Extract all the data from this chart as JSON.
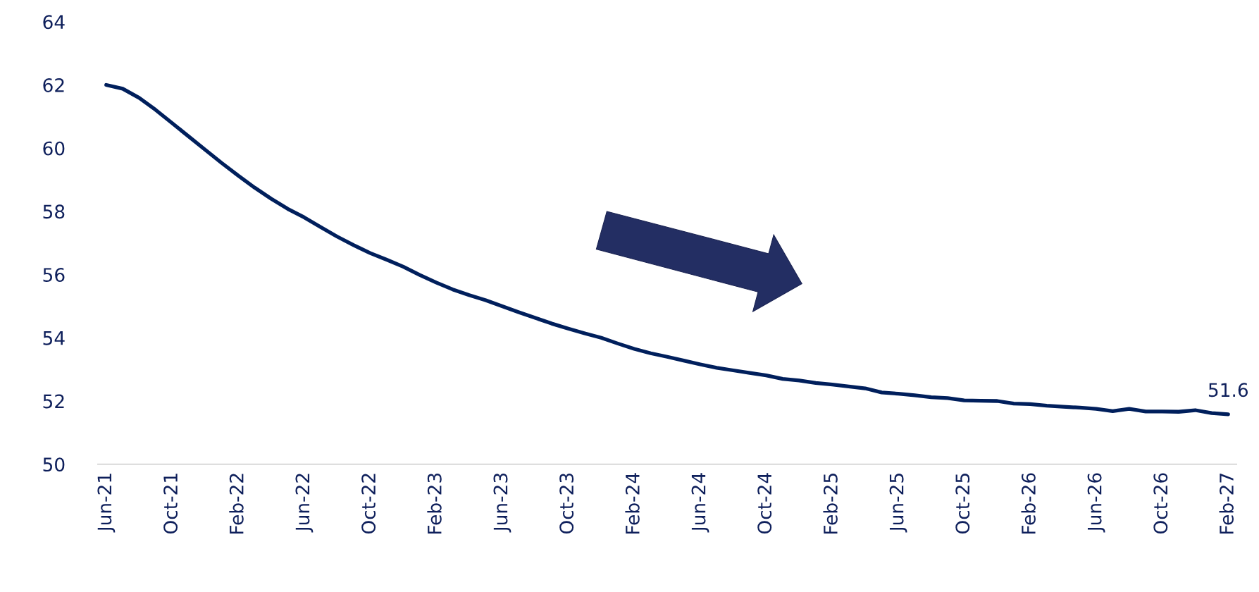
{
  "chart_data": {
    "type": "line",
    "categories": [
      "Jun-21",
      null,
      null,
      null,
      "Oct-21",
      null,
      null,
      null,
      "Feb-22",
      null,
      null,
      null,
      "Jun-22",
      null,
      null,
      null,
      "Oct-22",
      null,
      null,
      null,
      "Feb-23",
      null,
      null,
      null,
      "Jun-23",
      null,
      null,
      null,
      "Oct-23",
      null,
      null,
      null,
      "Feb-24",
      null,
      null,
      null,
      "Jun-24",
      null,
      null,
      null,
      "Oct-24",
      null,
      null,
      null,
      "Feb-25",
      null,
      null,
      null,
      "Jun-25",
      null,
      null,
      null,
      "Oct-25",
      null,
      null,
      null,
      "Feb-26",
      null,
      null,
      null,
      "Jun-26",
      null,
      null,
      null,
      "Oct-26",
      null,
      null,
      null,
      "Feb-27"
    ],
    "series": [
      {
        "color": "#001f5c",
        "values": [
          62.0,
          61.88,
          61.59,
          61.21,
          60.79,
          60.37,
          59.95,
          59.53,
          59.13,
          58.75,
          58.4,
          58.08,
          57.81,
          57.5,
          57.2,
          56.93,
          56.68,
          56.47,
          56.25,
          55.99,
          55.75,
          55.53,
          55.35,
          55.19,
          55.0,
          54.81,
          54.63,
          54.45,
          54.29,
          54.14,
          54.0,
          53.82,
          53.65,
          53.51,
          53.4,
          53.28,
          53.16,
          53.05,
          52.97,
          52.89,
          52.81,
          52.7,
          52.65,
          52.57,
          52.52,
          52.46,
          52.4,
          52.27,
          52.23,
          52.18,
          52.12,
          52.09,
          52.02,
          52.01,
          52.0,
          51.92,
          51.9,
          51.85,
          51.82,
          51.79,
          51.75,
          51.68,
          51.75,
          51.67,
          51.67,
          51.66,
          51.71,
          51.62,
          51.58
        ],
        "value_labels": [
          null,
          null,
          null,
          null,
          null,
          null,
          null,
          null,
          null,
          null,
          null,
          null,
          null,
          null,
          null,
          null,
          null,
          null,
          null,
          null,
          null,
          null,
          null,
          null,
          null,
          null,
          null,
          null,
          null,
          null,
          null,
          null,
          null,
          null,
          null,
          null,
          null,
          null,
          null,
          null,
          null,
          null,
          null,
          null,
          null,
          null,
          null,
          null,
          null,
          null,
          null,
          null,
          null,
          null,
          null,
          null,
          null,
          null,
          null,
          null,
          null,
          null,
          null,
          null,
          null,
          null,
          null,
          null,
          "51.6"
        ]
      }
    ],
    "ylim": [
      50,
      64
    ],
    "yticks": [
      50,
      52,
      54,
      56,
      58,
      60,
      62,
      64
    ],
    "grid": false,
    "legend": false,
    "marker": "none",
    "line_style": "solid"
  }
}
